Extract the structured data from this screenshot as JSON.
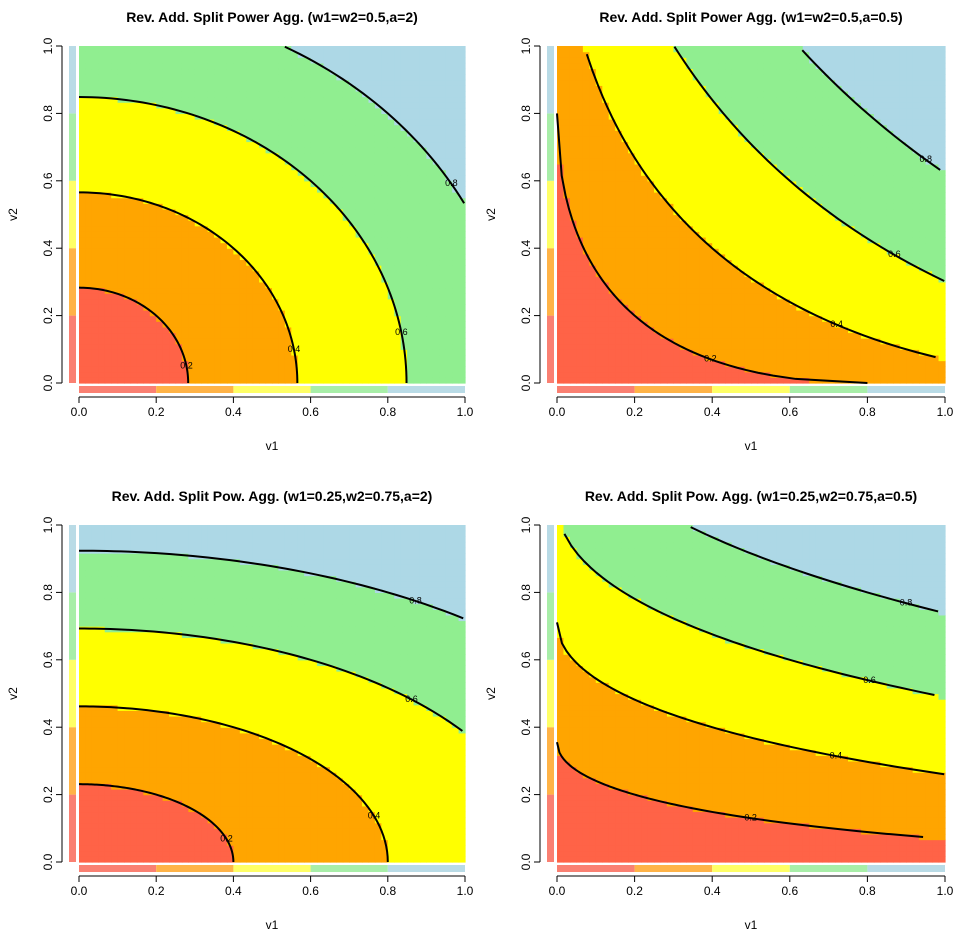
{
  "figure": {
    "colors": {
      "band_0_0.2": "#ff6347",
      "band_0.2_0.4": "#ffa500",
      "band_0.4_0.6": "#ffff00",
      "band_0.6_0.8": "#90ee90",
      "band_0.8_1": "#add8e6",
      "key_0_0.2": "#fa8072",
      "key_0.2_0.4": "#ffb347",
      "key_0.4_0.6": "#ffff66",
      "key_0.6_0.8": "#a8eea8",
      "key_0.8_1": "#b9dbe6"
    }
  },
  "chart_data": [
    {
      "type": "contour",
      "title": "Rev. Add. Split Power Agg. (w1=w2=0.5,a=2)",
      "xlabel": "v1",
      "ylabel": "v2",
      "xlim": [
        0,
        1
      ],
      "ylim": [
        0,
        1
      ],
      "xticks": [
        "0.0",
        "0.2",
        "0.4",
        "0.6",
        "0.8",
        "1.0"
      ],
      "yticks": [
        "0.0",
        "0.2",
        "0.4",
        "0.6",
        "0.8",
        "1.0"
      ],
      "levels": [
        0.2,
        0.4,
        0.6,
        0.8
      ],
      "level_labels": [
        "0.2",
        "0.4",
        "0.6",
        "0.8"
      ],
      "model": {
        "kind": "power",
        "w1": 0.5,
        "w2": 0.5,
        "a": 2
      }
    },
    {
      "type": "contour",
      "title": "Rev. Add. Split Power Agg. (w1=w2=0.5,a=0.5)",
      "xlabel": "v1",
      "ylabel": "v2",
      "xlim": [
        0,
        1
      ],
      "ylim": [
        0,
        1
      ],
      "xticks": [
        "0.0",
        "0.2",
        "0.4",
        "0.6",
        "0.8",
        "1.0"
      ],
      "yticks": [
        "0.0",
        "0.2",
        "0.4",
        "0.6",
        "0.8",
        "1.0"
      ],
      "levels": [
        0.2,
        0.4,
        0.6,
        0.8
      ],
      "level_labels": [
        "0.2",
        "0.4",
        "0.6",
        "0.8"
      ],
      "model": {
        "kind": "power",
        "w1": 0.5,
        "w2": 0.5,
        "a": 0.5
      }
    },
    {
      "type": "contour",
      "title": "Rev. Add. Split Pow. Agg. (w1=0.25,w2=0.75,a=2)",
      "xlabel": "v1",
      "ylabel": "v2",
      "xlim": [
        0,
        1
      ],
      "ylim": [
        0,
        1
      ],
      "xticks": [
        "0.0",
        "0.2",
        "0.4",
        "0.6",
        "0.8",
        "1.0"
      ],
      "yticks": [
        "0.0",
        "0.2",
        "0.4",
        "0.6",
        "0.8",
        "1.0"
      ],
      "levels": [
        0.2,
        0.4,
        0.6,
        0.8
      ],
      "level_labels": [
        "0.2",
        "0.4",
        "0.6",
        "0.8"
      ],
      "model": {
        "kind": "power",
        "w1": 0.25,
        "w2": 0.75,
        "a": 2
      }
    },
    {
      "type": "contour",
      "title": "Rev. Add. Split Pow. Agg. (w1=0.25,w2=0.75,a=0.5)",
      "xlabel": "v1",
      "ylabel": "v2",
      "xlim": [
        0,
        1
      ],
      "ylim": [
        0,
        1
      ],
      "xticks": [
        "0.0",
        "0.2",
        "0.4",
        "0.6",
        "0.8",
        "1.0"
      ],
      "yticks": [
        "0.0",
        "0.2",
        "0.4",
        "0.6",
        "0.8",
        "1.0"
      ],
      "levels": [
        0.2,
        0.4,
        0.6,
        0.8
      ],
      "level_labels": [
        "0.2",
        "0.4",
        "0.6",
        "0.8"
      ],
      "model": {
        "kind": "power",
        "w1": 0.25,
        "w2": 0.75,
        "a": 0.5
      }
    }
  ]
}
